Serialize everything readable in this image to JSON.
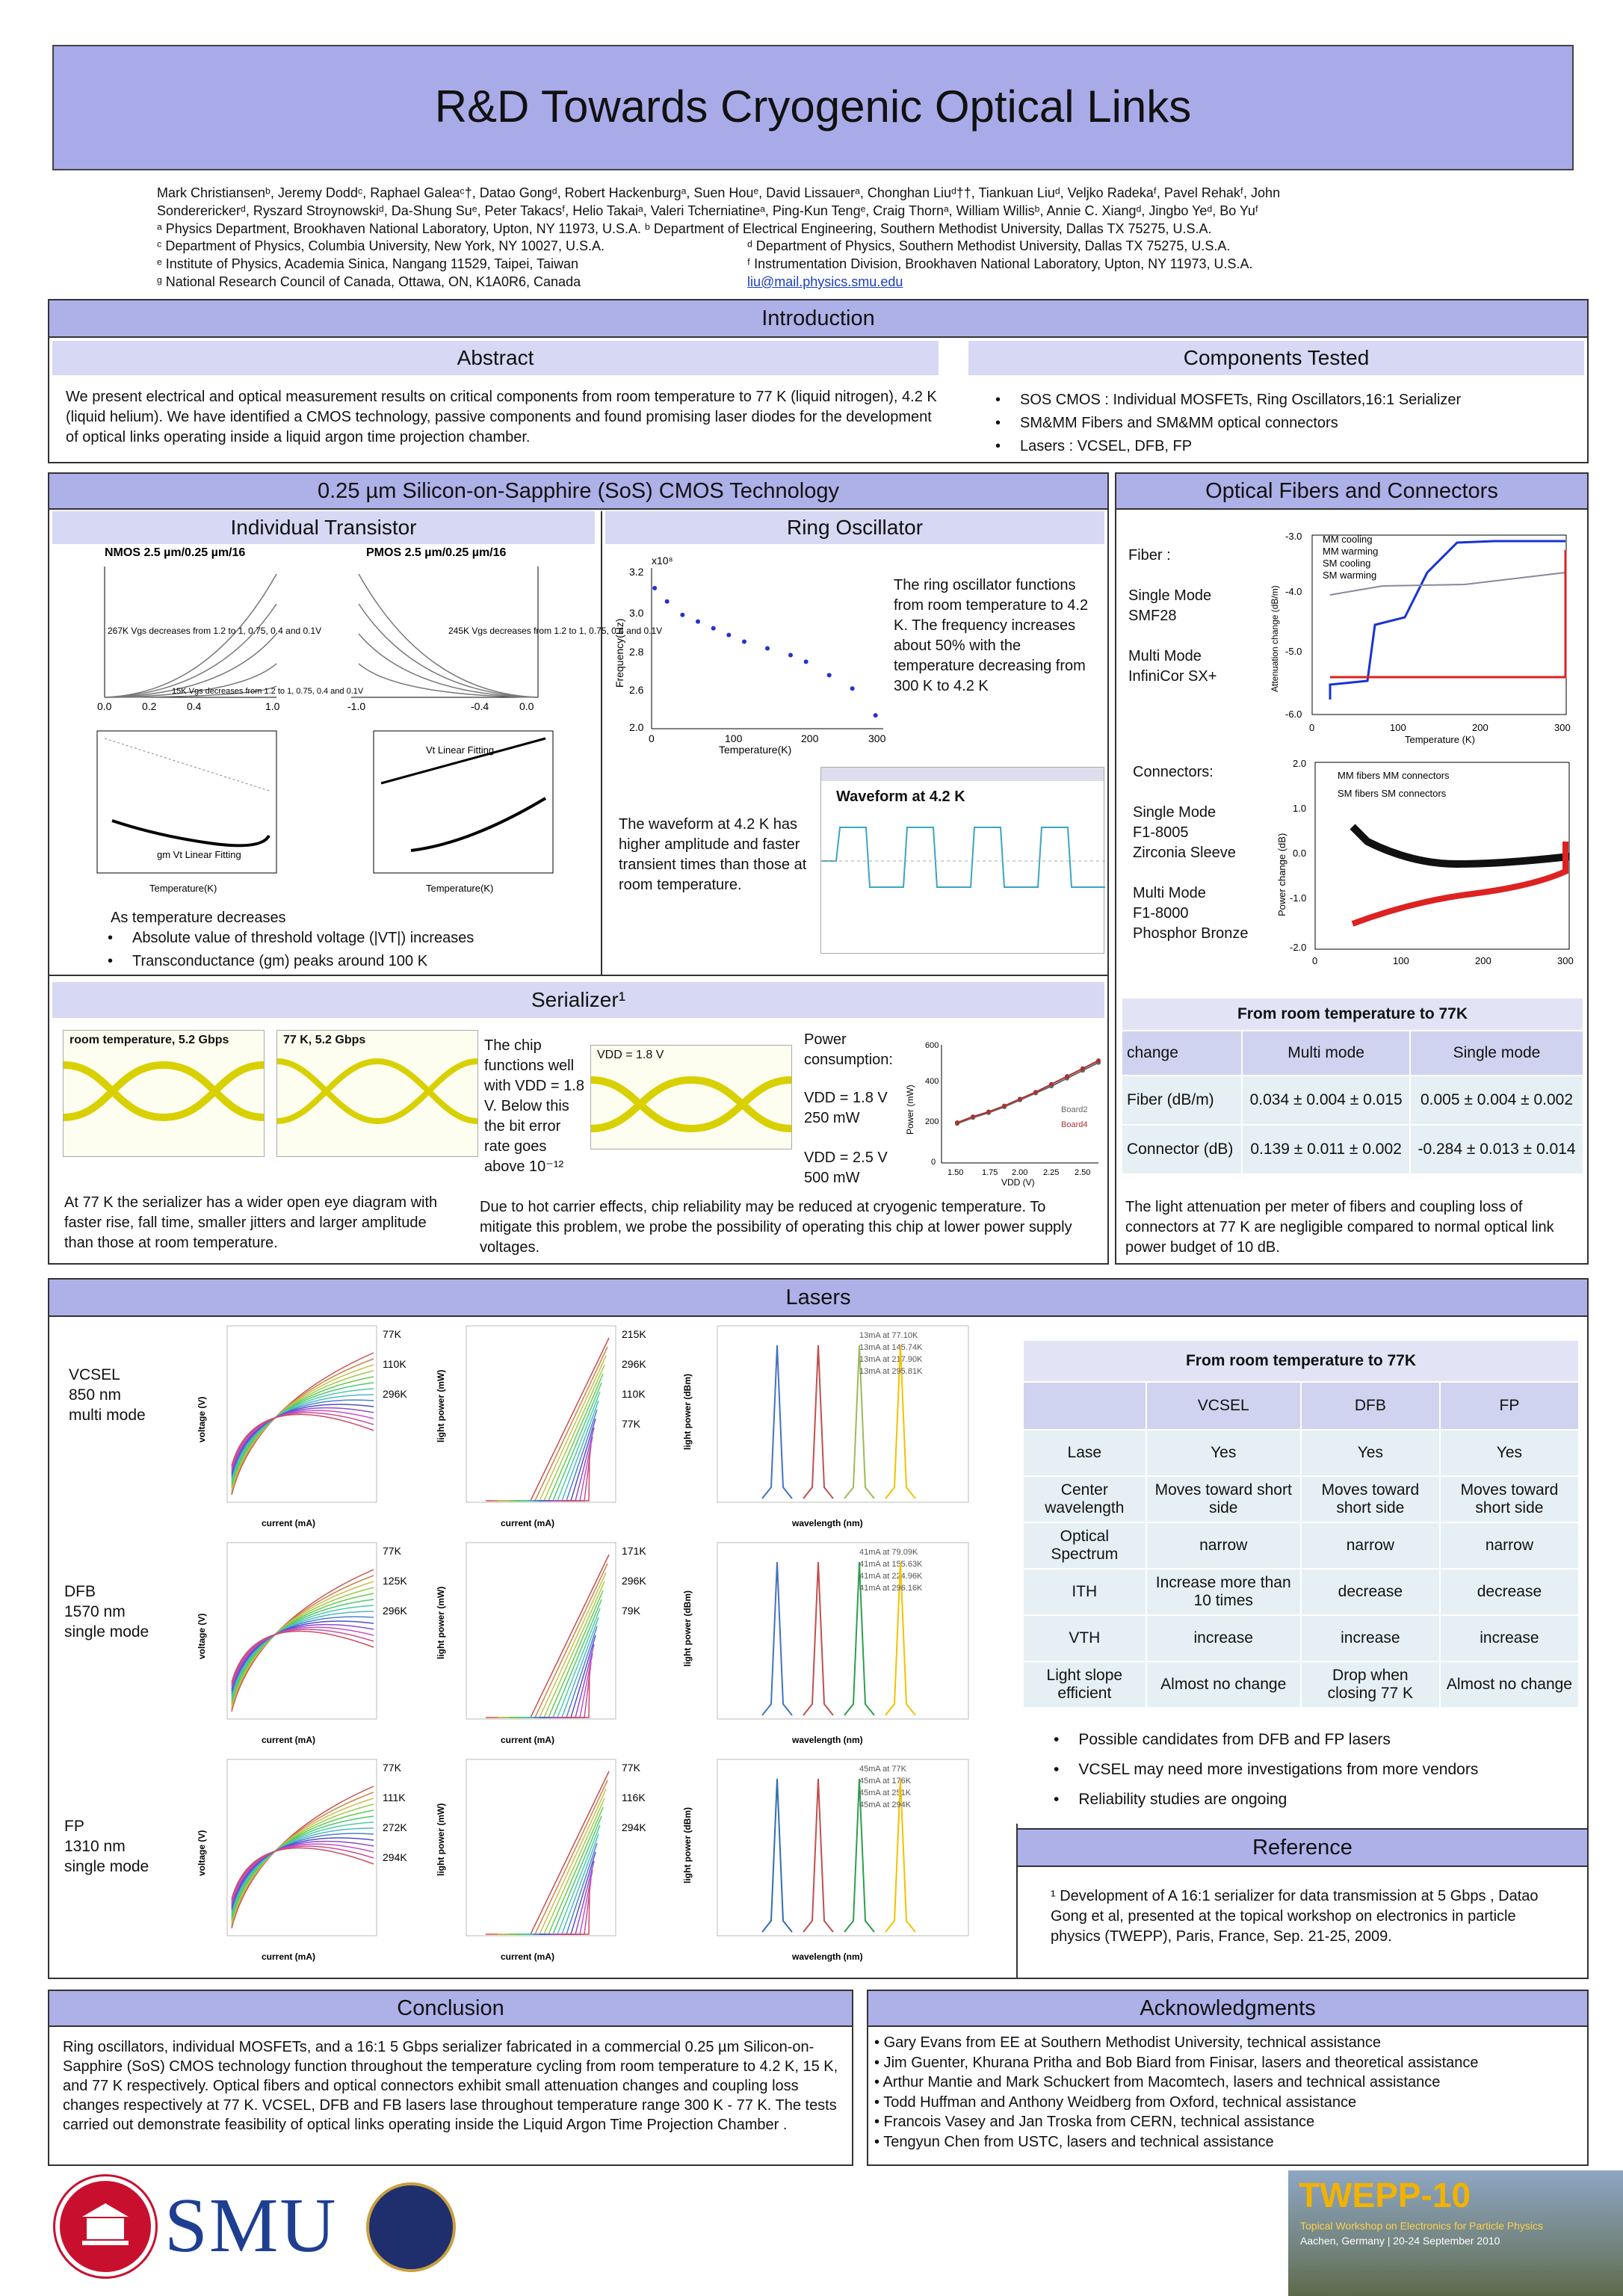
{
  "title": "R&D Towards Cryogenic Optical Links",
  "authors": {
    "line1": "Mark Christiansenᵇ, Jeremy Doddᶜ, Raphael Galeaᶜ†, Datao Gongᵈ, Robert Hackenburgᵃ, Suen Houᵉ, David Lissauerᵃ, Chonghan Liuᵈ††, Tiankuan Liuᵈ, Veljko Radekaᶠ, Pavel Rehakᶠ, John",
    "line2": "Sondererickerᵈ, Ryszard Stroynowskiᵈ, Da-Shung Suᵉ, Peter Takacsᶠ, Helio Takaiᵃ, Valeri Tcherniatineᵃ, Ping-Kun Tengᵉ, Craig Thornᵃ, William Willisᵇ, Annie C. Xiangᵈ, Jingbo Yeᵈ, Bo Yuᶠ",
    "aff_a": "ᵃ Physics Department, Brookhaven National Laboratory, Upton, NY 11973, U.S.A. ᵇ Department of Electrical Engineering, Southern Methodist University, Dallas TX 75275, U.S.A.",
    "aff_c": "ᶜ Department of Physics, Columbia University, New York, NY 10027, U.S.A.",
    "aff_d": "ᵈ Department of Physics, Southern Methodist University, Dallas TX 75275, U.S.A.",
    "aff_e": "ᵉ Institute of Physics, Academia Sinica, Nangang 11529, Taipei, Taiwan",
    "aff_f": "ᶠ Instrumentation Division, Brookhaven National Laboratory, Upton, NY 11973, U.S.A.",
    "aff_g": "ᵍ National Research Council of Canada, Ottawa, ON, K1A0R6, Canada",
    "email": "liu@mail.physics.smu.edu"
  },
  "intro": {
    "header": "Introduction",
    "abstract_header": "Abstract",
    "abstract_text": "We present electrical and optical measurement results on critical components from room temperature to 77 K (liquid nitrogen), 4.2 K (liquid helium). We have identified a CMOS technology, passive components and found promising laser diodes for the development of optical links operating inside a liquid argon time projection chamber.",
    "components_header": "Components Tested",
    "components": [
      "SOS CMOS : Individual MOSFETs, Ring Oscillators,16:1 Serializer",
      "SM&MM Fibers and SM&MM optical connectors",
      "Lasers : VCSEL, DFB, FP"
    ]
  },
  "sos": {
    "header": "0.25 µm Silicon-on-Sapphire (SoS) CMOS Technology",
    "transistor_header": "Individual Transistor",
    "ring_header": "Ring Oscillator",
    "nmos_title": "NMOS 2.5 µm/0.25 µm/16",
    "pmos_title": "PMOS 2.5 µm/0.25 µm/16",
    "nmos_note": "267K Vgs decreases from 1.2 to 1, 0.75, 0.4 and 0.1V",
    "pmos_note": "245K Vgs decreases from 1.2 to 1, 0.75, 0.4 and 0.1V",
    "k15_note": "15K Vgs decreases from 1.2 to 1, 0.75, 0.4 and 0.1V",
    "vt_fit": "Vt Linear Fitting",
    "gm_fit": "gm  Vt Linear Fitting",
    "temp_k": "Temperature(K)",
    "temp_intro": "As temperature decreases",
    "temp_bullets": [
      "Absolute value of threshold voltage (|VT|) increases",
      "Transconductance (gm)  peaks around 100 K"
    ],
    "ring_text1": "The ring oscillator functions from room temperature to 4.2 K. The frequency increases about 50%  with the temperature decreasing from 300 K to 4.2 K",
    "ring_text2": "The waveform at 4.2 K has higher amplitude and faster transient times than those at room temperature.",
    "waveform_label": "Waveform at 4.2 K",
    "freq_ylabel": "Frequency(Hz)",
    "freq_exp": "x10⁸"
  },
  "serializer": {
    "header": "Serializer¹",
    "eye1": "room temperature, 5.2 Gbps",
    "eye2": "77 K, 5.2 Gbps",
    "eye3": "VDD = 1.8 V",
    "chip_text": "The chip functions well with VDD = 1.8 V. Below this the bit error rate goes above 10⁻¹²",
    "power_label": "Power consumption:",
    "power1": "VDD = 1.8 V 250 mW",
    "power2": "VDD = 2.5 V 500 mW",
    "left_text": "At 77 K the serializer has a wider open eye diagram with faster rise, fall time, smaller jitters and larger amplitude than those at room temperature.",
    "right_text": "Due to hot carrier effects, chip reliability may be reduced at cryogenic temperature. To mitigate this problem, we probe the possibility of operating this chip at lower power supply voltages.",
    "power_ylabel": "Power (mW)",
    "power_xlabel": "VDD (V)",
    "legend": [
      "Board2",
      "Board4"
    ]
  },
  "fibers": {
    "header": "Optical Fibers and Connectors",
    "fiber_label": "Fiber :",
    "sm_label": "Single Mode",
    "sm_val": "SMF28",
    "mm_label": "Multi Mode",
    "mm_val": "InfiniCor SX+",
    "conn_label": "Connectors:",
    "conn_sm": "Single Mode",
    "conn_sm1": "F1-8005",
    "conn_sm2": "Zirconia Sleeve",
    "conn_mm": "Multi Mode",
    "conn_mm1": "F1-8000",
    "conn_mm2": "Phosphor Bronze",
    "att_legend": [
      "MM cooling",
      "MM warming",
      "SM cooling",
      "SM warming"
    ],
    "att_ylabel": "Attenuation change (dB/m)",
    "pc_legend": [
      "MM fibers MM connectors",
      "SM fibers SM connectors"
    ],
    "pc_ylabel": "Power change (dB)",
    "xlabel": "Temperature (K)",
    "table_title": "From room temperature to 77K",
    "table_head": [
      "change",
      "Multi mode",
      "Single mode"
    ],
    "table_rows": [
      [
        "Fiber (dB/m)",
        "0.034 ± 0.004 ± 0.015",
        "0.005 ± 0.004 ± 0.002"
      ],
      [
        "Connector (dB)",
        "0.139 ± 0.011 ± 0.002",
        "-0.284 ± 0.013 ± 0.014"
      ]
    ],
    "note": "The light attenuation  per meter of fibers and coupling loss of connectors at 77 K are negligible compared to normal optical link power budget of 10 dB."
  },
  "lasers": {
    "header": "Lasers",
    "vcsel": [
      "VCSEL",
      "850 nm",
      "multi mode"
    ],
    "dfb": [
      "DFB",
      "1570 nm",
      "single mode"
    ],
    "fp": [
      "FP",
      "1310 nm",
      "single mode"
    ],
    "current_label": "current (mA)",
    "voltage_label": "voltage (V)",
    "lightpower_label": "light power (mW)",
    "wavelength_label": "wavelength (nm)",
    "lightpower_dbm": "light power (dBm)",
    "vcsel_v_labels": [
      "77K",
      "110K",
      "296K"
    ],
    "vcsel_p_labels": [
      "215K",
      "296K",
      "110K",
      "77K"
    ],
    "dfb_v_labels": [
      "77K",
      "125K",
      "296K"
    ],
    "dfb_p_labels": [
      "171K",
      "296K",
      "79K"
    ],
    "fp_v_labels": [
      "77K",
      "111K",
      "272K",
      "294K"
    ],
    "fp_p_labels": [
      "77K",
      "116K",
      "294K"
    ],
    "vcsel_spec_legend": [
      "13mA at 77.10K",
      "13mA at 145.74K",
      "13mA at 217.90K",
      "13mA at 295.81K"
    ],
    "dfb_spec_legend": [
      "41mA at 79.09K",
      "41mA at 155.63K",
      "41mA at 224.96K",
      "41mA at 296.16K"
    ],
    "fp_spec_legend": [
      "45mA at 77K",
      "45mA at 176K",
      "45mA at 251K",
      "45mA at 294K"
    ],
    "table_title": "From room temperature to 77K",
    "table_head": [
      "",
      "VCSEL",
      "DFB",
      "FP"
    ],
    "table_rows": [
      [
        "Lase",
        "Yes",
        "Yes",
        "Yes"
      ],
      [
        "Center wavelength",
        "Moves toward short side",
        "Moves toward short side",
        "Moves toward short side"
      ],
      [
        "Optical Spectrum",
        "narrow",
        "narrow",
        "narrow"
      ],
      [
        "ITH",
        "Increase more than 10 times",
        "decrease",
        "decrease"
      ],
      [
        "VTH",
        "increase",
        "increase",
        "increase"
      ],
      [
        "Light slope efficient",
        "Almost no change",
        "Drop when closing 77 K",
        "Almost no change"
      ]
    ],
    "bullets": [
      "Possible candidates from DFB and FP lasers",
      "VCSEL may need more investigations from more vendors",
      "Reliability studies  are ongoing"
    ]
  },
  "reference": {
    "header": "Reference",
    "text": "¹ Development of A 16:1 serializer for data transmission at 5 Gbps , Datao Gong et al, presented at the topical workshop on electronics in particle physics (TWEPP), Paris, France, Sep. 21-25, 2009."
  },
  "conclusion": {
    "header": "Conclusion",
    "text": "Ring oscillators, individual MOSFETs, and a 16:1 5 Gbps serializer fabricated in a commercial 0.25 µm Silicon-on-Sapphire (SoS) CMOS technology function throughout the temperature cycling from room temperature to 4.2 K, 15 K, and 77 K respectively. Optical fibers and optical connectors exhibit small attenuation changes and coupling loss changes  respectively at 77 K. VCSEL, DFB and FB lasers lase throughout  temperature  range 300 K - 77 K. The tests carried out demonstrate feasibility of optical links operating inside the Liquid Argon Time Projection Chamber ."
  },
  "acknowledgments": {
    "header": "Acknowledgments",
    "items": [
      "Gary Evans from EE at Southern Methodist University, technical assistance",
      "Jim Guenter, Khurana Pritha and Bob Biard from Finisar, lasers and theoretical assistance",
      "Arthur Mantie and Mark Schuckert from Macomtech, lasers and technical assistance",
      "Todd Huffman and Anthony Weidberg from Oxford, technical assistance",
      "Francois Vasey and Jan Troska from CERN, technical assistance",
      "Tengyun Chen from USTC, lasers and technical assistance"
    ]
  },
  "logos": {
    "smu": "SMU",
    "twepp": "TWEPP-10",
    "twepp_sub": "Topical Workshop on Electronics for Particle Physics",
    "twepp_place": "Aachen, Germany | 20-24 September 2010"
  },
  "chart_data": [
    {
      "type": "scatter",
      "title": "",
      "xlabel": "Temperature(K)",
      "ylabel": "Frequency(Hz)",
      "xlim": [
        0,
        300
      ],
      "ylim": [
        2.0,
        3.2
      ],
      "x": [
        4,
        20,
        40,
        60,
        80,
        100,
        120,
        150,
        180,
        200,
        230,
        260,
        290
      ],
      "y": [
        3.05,
        2.95,
        2.85,
        2.8,
        2.75,
        2.7,
        2.65,
        2.6,
        2.55,
        2.5,
        2.4,
        2.3,
        2.1
      ]
    },
    {
      "type": "line",
      "title": "",
      "xlabel": "VDD (V)",
      "ylabel": "Power (mW)",
      "xlim": [
        1.5,
        2.5
      ],
      "ylim": [
        0,
        600
      ],
      "x": [
        1.6,
        1.7,
        1.8,
        1.9,
        2.0,
        2.1,
        2.2,
        2.3,
        2.4,
        2.5
      ],
      "series": [
        {
          "name": "Board2",
          "values": [
            200,
            230,
            255,
            285,
            320,
            355,
            390,
            430,
            470,
            510
          ]
        },
        {
          "name": "Board4",
          "values": [
            205,
            235,
            260,
            290,
            325,
            360,
            400,
            440,
            480,
            520
          ]
        }
      ]
    }
  ]
}
